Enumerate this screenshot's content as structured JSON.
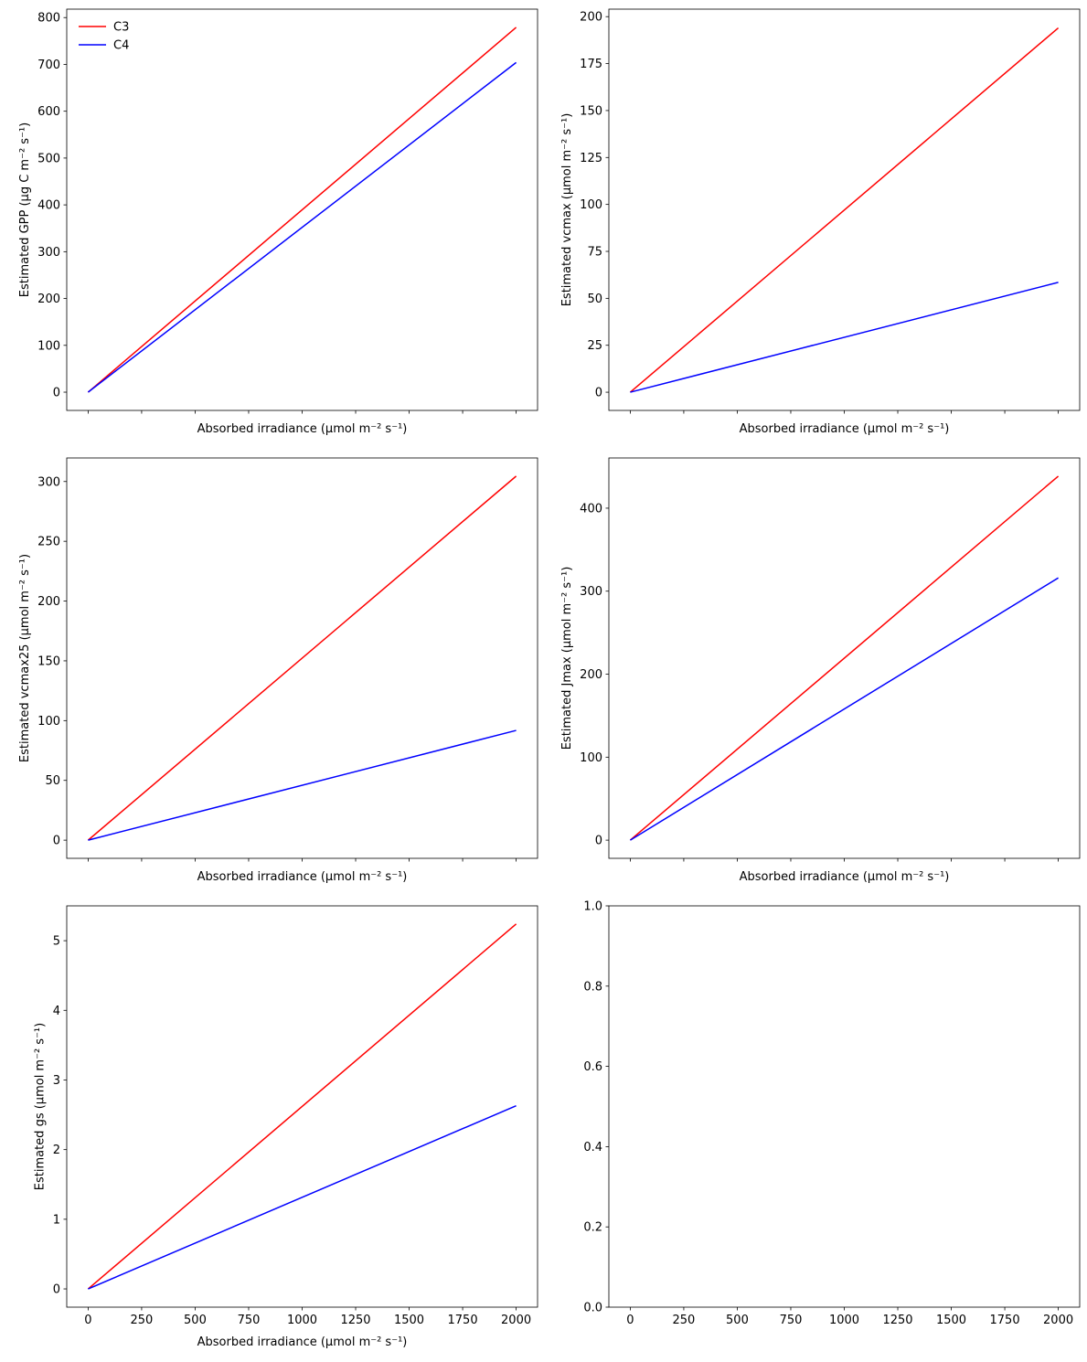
{
  "chart_data": [
    {
      "type": "line",
      "xlabel": "Absorbed irradiance (μmol m⁻² s⁻¹)",
      "ylabel": "Estimated GPP (μg C m⁻² s⁻¹)",
      "x": [
        0,
        2000
      ],
      "series": [
        {
          "name": "C3",
          "color": "#ff0000",
          "values": [
            0,
            779
          ]
        },
        {
          "name": "C4",
          "color": "#0000ff",
          "values": [
            0,
            704
          ]
        }
      ],
      "xlim": [
        -100,
        2100
      ],
      "ylim": [
        -39,
        818
      ],
      "xticks": [
        0,
        250,
        500,
        750,
        1000,
        1250,
        1500,
        1750,
        2000
      ],
      "yticks": [
        0,
        100,
        200,
        300,
        400,
        500,
        600,
        700,
        800
      ],
      "xtick_labels": false,
      "legend": "upper left"
    },
    {
      "type": "line",
      "xlabel": "Absorbed irradiance (μmol m⁻² s⁻¹)",
      "ylabel": "Estimated vcmax (μmol m⁻² s⁻¹)",
      "x": [
        0,
        2000
      ],
      "series": [
        {
          "color": "#ff0000",
          "values": [
            0,
            194
          ]
        },
        {
          "color": "#0000ff",
          "values": [
            0,
            58.5
          ]
        }
      ],
      "xlim": [
        -100,
        2100
      ],
      "ylim": [
        -9.7,
        204
      ],
      "xticks": [
        0,
        250,
        500,
        750,
        1000,
        1250,
        1500,
        1750,
        2000
      ],
      "yticks": [
        0,
        25,
        50,
        75,
        100,
        125,
        150,
        175,
        200
      ],
      "xtick_labels": false
    },
    {
      "type": "line",
      "xlabel": "Absorbed irradiance (μmol m⁻² s⁻¹)",
      "ylabel": "Estimated vcmax25 (μmol m⁻² s⁻¹)",
      "x": [
        0,
        2000
      ],
      "series": [
        {
          "color": "#ff0000",
          "values": [
            0,
            304.5
          ]
        },
        {
          "color": "#0000ff",
          "values": [
            0,
            91.8
          ]
        }
      ],
      "xlim": [
        -100,
        2100
      ],
      "ylim": [
        -15.2,
        319.7
      ],
      "xticks": [
        0,
        250,
        500,
        750,
        1000,
        1250,
        1500,
        1750,
        2000
      ],
      "yticks": [
        0,
        50,
        100,
        150,
        200,
        250,
        300
      ],
      "xtick_labels": false
    },
    {
      "type": "line",
      "xlabel": "Absorbed irradiance (μmol m⁻² s⁻¹)",
      "ylabel": "Estimated Jmax (μmol m⁻² s⁻¹)",
      "x": [
        0,
        2000
      ],
      "series": [
        {
          "color": "#ff0000",
          "values": [
            0,
            438.6
          ]
        },
        {
          "color": "#0000ff",
          "values": [
            0,
            316
          ]
        }
      ],
      "xlim": [
        -100,
        2100
      ],
      "ylim": [
        -21.9,
        460.5
      ],
      "xticks": [
        0,
        250,
        500,
        750,
        1000,
        1250,
        1500,
        1750,
        2000
      ],
      "yticks": [
        0,
        100,
        200,
        300,
        400
      ],
      "xtick_labels": false
    },
    {
      "type": "line",
      "xlabel": "Absorbed irradiance (μmol m⁻² s⁻¹)",
      "ylabel": "Estimated gs (μmol m⁻² s⁻¹)",
      "x": [
        0,
        2000
      ],
      "series": [
        {
          "color": "#ff0000",
          "values": [
            0,
            5.24
          ]
        },
        {
          "color": "#0000ff",
          "values": [
            0,
            2.63
          ]
        }
      ],
      "xlim": [
        -100,
        2100
      ],
      "ylim": [
        -0.262,
        5.5
      ],
      "xticks": [
        0,
        250,
        500,
        750,
        1000,
        1250,
        1500,
        1750,
        2000
      ],
      "yticks": [
        0,
        1,
        2,
        3,
        4,
        5
      ],
      "xtick_labels": true
    },
    {
      "type": "line",
      "x": [],
      "series": [],
      "xlim": [
        -100,
        2100
      ],
      "ylim": [
        0,
        1
      ],
      "xticks": [
        0,
        250,
        500,
        750,
        1000,
        1250,
        1500,
        1750,
        2000
      ],
      "yticks": [
        {
          "value": 0,
          "label": "0.0"
        },
        {
          "value": 0.2,
          "label": "0.2"
        },
        {
          "value": 0.4,
          "label": "0.4"
        },
        {
          "value": 0.6,
          "label": "0.6"
        },
        {
          "value": 0.8,
          "label": "0.8"
        },
        {
          "value": 1,
          "label": "1.0"
        }
      ],
      "xtick_labels": true
    }
  ]
}
